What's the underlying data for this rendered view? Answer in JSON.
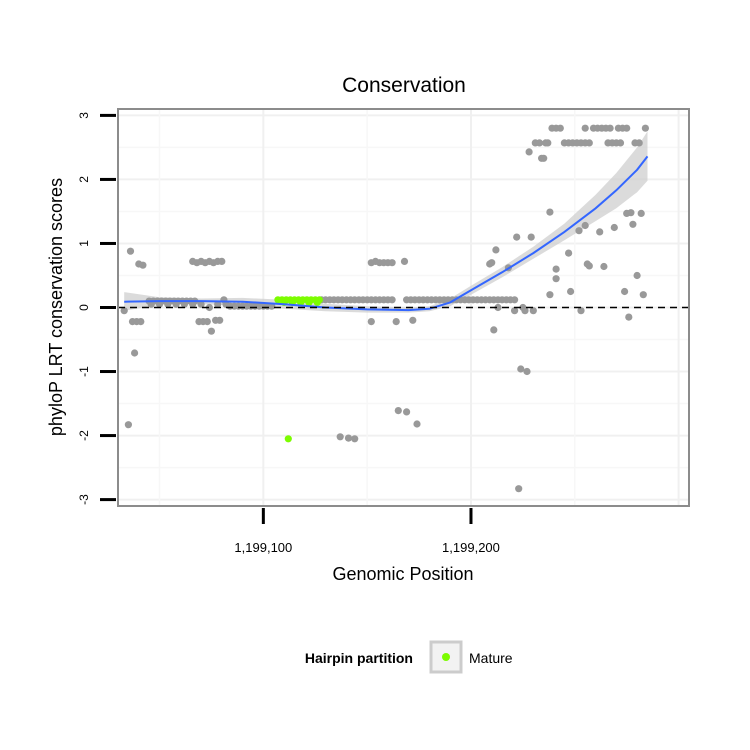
{
  "chart_data": {
    "type": "scatter",
    "title": "Conservation",
    "xlabel": "Genomic Position",
    "ylabel": "phyloP LRT conservation scores",
    "xlim": [
      1199030,
      1199305
    ],
    "ylim": [
      -3.1,
      3.1
    ],
    "xticks": [
      {
        "value": 1199100,
        "label": "1,199,100"
      },
      {
        "value": 1199200,
        "label": "1,199,200"
      }
    ],
    "yticks": [
      {
        "value": -3,
        "label": "-3"
      },
      {
        "value": -2,
        "label": "-2"
      },
      {
        "value": -1,
        "label": "-1"
      },
      {
        "value": 0,
        "label": "0"
      },
      {
        "value": 1,
        "label": "1"
      },
      {
        "value": 2,
        "label": "2"
      },
      {
        "value": 3,
        "label": "3"
      }
    ],
    "grid": true,
    "reference_line": {
      "y": 0,
      "style": "dashed",
      "color": "#000000"
    },
    "legend": {
      "title": "Hairpin partition",
      "placement": "bottom",
      "entries": [
        {
          "label": "Mature",
          "color": "#7CFC00"
        }
      ]
    },
    "colors": {
      "other": "#999999",
      "mature": "#7CFC00",
      "smooth": "#3366FF",
      "ribbon": "#cccccc",
      "panel_border": "#8c8c8c"
    },
    "series": [
      {
        "group": "other",
        "points": [
          [
            1199033,
            -0.05
          ],
          [
            1199035,
            -1.83
          ],
          [
            1199036,
            0.88
          ],
          [
            1199037,
            -0.22
          ],
          [
            1199038,
            -0.71
          ],
          [
            1199039,
            -0.22
          ],
          [
            1199040,
            0.68
          ],
          [
            1199041,
            -0.22
          ],
          [
            1199042,
            0.66
          ],
          [
            1199045,
            0.1
          ],
          [
            1199047,
            0.1
          ],
          [
            1199049,
            0.1
          ],
          [
            1199051,
            0.1
          ],
          [
            1199053,
            0.1
          ],
          [
            1199055,
            0.1
          ],
          [
            1199057,
            0.1
          ],
          [
            1199059,
            0.1
          ],
          [
            1199061,
            0.1
          ],
          [
            1199063,
            0.1
          ],
          [
            1199065,
            0.1
          ],
          [
            1199067,
            0.1
          ],
          [
            1199046,
            0.05
          ],
          [
            1199050,
            0.05
          ],
          [
            1199054,
            0.05
          ],
          [
            1199058,
            0.05
          ],
          [
            1199062,
            0.05
          ],
          [
            1199066,
            0.05
          ],
          [
            1199066,
            0.72
          ],
          [
            1199068,
            0.7
          ],
          [
            1199070,
            0.72
          ],
          [
            1199072,
            0.7
          ],
          [
            1199074,
            0.72
          ],
          [
            1199076,
            0.7
          ],
          [
            1199078,
            0.72
          ],
          [
            1199080,
            0.72
          ],
          [
            1199069,
            -0.22
          ],
          [
            1199071,
            -0.22
          ],
          [
            1199073,
            -0.22
          ],
          [
            1199075,
            -0.37
          ],
          [
            1199077,
            -0.2
          ],
          [
            1199079,
            -0.2
          ],
          [
            1199081,
            0.12
          ],
          [
            1199070,
            0.05
          ],
          [
            1199074,
            0.0
          ],
          [
            1199078,
            0.05
          ],
          [
            1199082,
            0.05
          ],
          [
            1199084,
            0.02
          ],
          [
            1199086,
            0.02
          ],
          [
            1199088,
            0.02
          ],
          [
            1199090,
            0.02
          ],
          [
            1199092,
            0.02
          ],
          [
            1199094,
            0.02
          ],
          [
            1199096,
            0.02
          ],
          [
            1199098,
            0.02
          ],
          [
            1199100,
            0.02
          ],
          [
            1199102,
            0.02
          ],
          [
            1199104,
            0.02
          ],
          [
            1199128,
            0.12
          ],
          [
            1199130,
            0.12
          ],
          [
            1199132,
            0.12
          ],
          [
            1199134,
            0.12
          ],
          [
            1199136,
            0.12
          ],
          [
            1199138,
            0.12
          ],
          [
            1199140,
            0.12
          ],
          [
            1199142,
            0.12
          ],
          [
            1199144,
            0.12
          ],
          [
            1199146,
            0.12
          ],
          [
            1199148,
            0.12
          ],
          [
            1199150,
            0.12
          ],
          [
            1199152,
            0.12
          ],
          [
            1199154,
            0.12
          ],
          [
            1199156,
            0.12
          ],
          [
            1199158,
            0.12
          ],
          [
            1199160,
            0.12
          ],
          [
            1199162,
            0.12
          ],
          [
            1199137,
            -2.02
          ],
          [
            1199141,
            -2.04
          ],
          [
            1199144,
            -2.05
          ],
          [
            1199152,
            -0.22
          ],
          [
            1199152,
            0.7
          ],
          [
            1199154,
            0.72
          ],
          [
            1199156,
            0.7
          ],
          [
            1199158,
            0.7
          ],
          [
            1199160,
            0.7
          ],
          [
            1199162,
            0.7
          ],
          [
            1199168,
            0.72
          ],
          [
            1199164,
            -0.22
          ],
          [
            1199165,
            -1.61
          ],
          [
            1199169,
            0.12
          ],
          [
            1199171,
            0.12
          ],
          [
            1199173,
            0.12
          ],
          [
            1199175,
            0.12
          ],
          [
            1199177,
            0.12
          ],
          [
            1199179,
            0.12
          ],
          [
            1199181,
            0.12
          ],
          [
            1199183,
            0.12
          ],
          [
            1199185,
            0.12
          ],
          [
            1199187,
            0.12
          ],
          [
            1199189,
            0.12
          ],
          [
            1199191,
            0.12
          ],
          [
            1199169,
            -1.63
          ],
          [
            1199172,
            -0.2
          ],
          [
            1199174,
            -1.82
          ],
          [
            1199193,
            0.12
          ],
          [
            1199195,
            0.12
          ],
          [
            1199197,
            0.12
          ],
          [
            1199199,
            0.12
          ],
          [
            1199201,
            0.12
          ],
          [
            1199203,
            0.12
          ],
          [
            1199205,
            0.12
          ],
          [
            1199207,
            0.12
          ],
          [
            1199209,
            0.12
          ],
          [
            1199211,
            0.12
          ],
          [
            1199213,
            0.12
          ],
          [
            1199215,
            0.12
          ],
          [
            1199217,
            0.12
          ],
          [
            1199219,
            0.12
          ],
          [
            1199221,
            0.12
          ],
          [
            1199209,
            0.68
          ],
          [
            1199210,
            0.7
          ],
          [
            1199211,
            -0.35
          ],
          [
            1199212,
            0.9
          ],
          [
            1199213,
            0.0
          ],
          [
            1199218,
            0.62
          ],
          [
            1199221,
            -0.05
          ],
          [
            1199222,
            1.1
          ],
          [
            1199223,
            -2.83
          ],
          [
            1199224,
            -0.96
          ],
          [
            1199225,
            0.0
          ],
          [
            1199226,
            -0.05
          ],
          [
            1199227,
            -1.0
          ],
          [
            1199228,
            2.43
          ],
          [
            1199229,
            1.1
          ],
          [
            1199230,
            -0.05
          ],
          [
            1199231,
            2.57
          ],
          [
            1199233,
            2.57
          ],
          [
            1199234,
            2.33
          ],
          [
            1199235,
            2.33
          ],
          [
            1199236,
            2.57
          ],
          [
            1199237,
            2.57
          ],
          [
            1199238,
            1.49
          ],
          [
            1199238,
            0.2
          ],
          [
            1199239,
            2.8
          ],
          [
            1199241,
            2.8
          ],
          [
            1199243,
            2.8
          ],
          [
            1199241,
            0.6
          ],
          [
            1199241,
            0.45
          ],
          [
            1199245,
            2.57
          ],
          [
            1199247,
            2.57
          ],
          [
            1199249,
            2.57
          ],
          [
            1199251,
            2.57
          ],
          [
            1199253,
            2.57
          ],
          [
            1199255,
            2.57
          ],
          [
            1199257,
            2.57
          ],
          [
            1199255,
            2.8
          ],
          [
            1199247,
            0.85
          ],
          [
            1199248,
            0.25
          ],
          [
            1199252,
            1.2
          ],
          [
            1199253,
            -0.05
          ],
          [
            1199255,
            1.28
          ],
          [
            1199256,
            0.68
          ],
          [
            1199257,
            0.65
          ],
          [
            1199259,
            2.8
          ],
          [
            1199261,
            2.8
          ],
          [
            1199263,
            2.8
          ],
          [
            1199265,
            2.8
          ],
          [
            1199267,
            2.8
          ],
          [
            1199262,
            1.18
          ],
          [
            1199264,
            0.64
          ],
          [
            1199266,
            2.57
          ],
          [
            1199268,
            2.57
          ],
          [
            1199270,
            2.57
          ],
          [
            1199272,
            2.57
          ],
          [
            1199269,
            1.25
          ],
          [
            1199271,
            2.8
          ],
          [
            1199273,
            2.8
          ],
          [
            1199275,
            2.8
          ],
          [
            1199274,
            0.25
          ],
          [
            1199275,
            1.47
          ],
          [
            1199276,
            -0.15
          ],
          [
            1199277,
            1.48
          ],
          [
            1199278,
            1.3
          ],
          [
            1199279,
            2.57
          ],
          [
            1199280,
            0.5
          ],
          [
            1199281,
            2.57
          ],
          [
            1199282,
            1.47
          ],
          [
            1199283,
            0.2
          ],
          [
            1199284,
            2.8
          ]
        ]
      },
      {
        "group": "mature",
        "points": [
          [
            1199107,
            0.12
          ],
          [
            1199109,
            0.12
          ],
          [
            1199111,
            0.12
          ],
          [
            1199113,
            0.12
          ],
          [
            1199115,
            0.12
          ],
          [
            1199117,
            0.12
          ],
          [
            1199119,
            0.12
          ],
          [
            1199121,
            0.12
          ],
          [
            1199123,
            0.12
          ],
          [
            1199125,
            0.12
          ],
          [
            1199127,
            0.12
          ],
          [
            1199110,
            0.08
          ],
          [
            1199114,
            0.08
          ],
          [
            1199118,
            0.08
          ],
          [
            1199122,
            0.08
          ],
          [
            1199126,
            0.08
          ],
          [
            1199112,
            -2.05
          ]
        ]
      }
    ],
    "smooth": {
      "x": [
        1199033,
        1199050,
        1199070,
        1199090,
        1199110,
        1199130,
        1199150,
        1199170,
        1199180,
        1199190,
        1199200,
        1199215,
        1199230,
        1199245,
        1199260,
        1199270,
        1199280,
        1199285
      ],
      "y": [
        0.09,
        0.1,
        0.1,
        0.09,
        0.05,
        0.0,
        -0.03,
        -0.04,
        -0.02,
        0.08,
        0.27,
        0.55,
        0.85,
        1.18,
        1.55,
        1.83,
        2.15,
        2.36
      ],
      "lower": [
        -0.05,
        0.04,
        0.05,
        0.03,
        -0.02,
        -0.06,
        -0.08,
        -0.08,
        -0.06,
        0.02,
        0.2,
        0.47,
        0.76,
        1.05,
        1.35,
        1.55,
        1.8,
        1.98
      ],
      "upper": [
        0.24,
        0.16,
        0.14,
        0.15,
        0.12,
        0.06,
        0.02,
        0.0,
        0.02,
        0.14,
        0.34,
        0.63,
        0.95,
        1.31,
        1.76,
        2.1,
        2.5,
        2.75
      ]
    }
  }
}
